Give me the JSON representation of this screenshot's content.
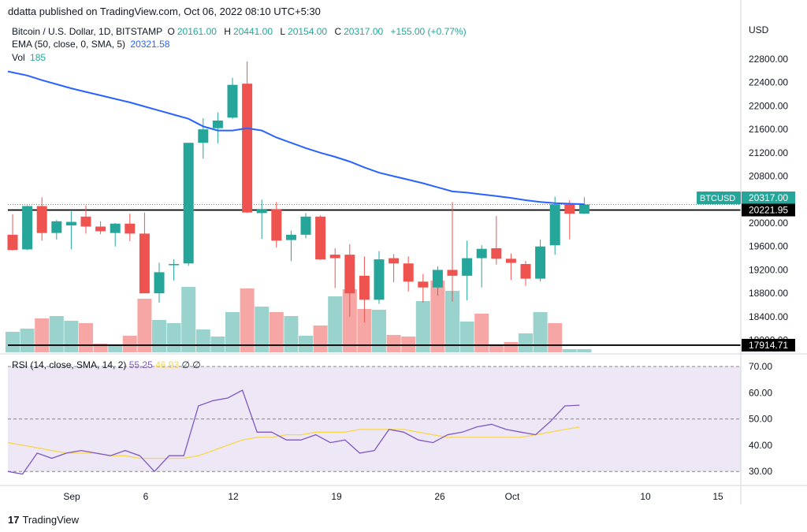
{
  "header": {
    "published": "ddatta published on TradingView.com, Oct 06, 2022 08:10 UTC+5:30"
  },
  "legend": {
    "symbol": "Bitcoin / U.S. Dollar, 1D, BITSTAMP",
    "o_label": "O",
    "o": "20161.00",
    "h_label": "H",
    "h": "20441.00",
    "l_label": "L",
    "l": "20154.00",
    "c_label": "C",
    "c": "20317.00",
    "change": "+155.00 (+0.77%)",
    "ema_label": "EMA (50, close, 0, SMA, 5)",
    "ema_value": "20321.58",
    "vol_label": "Vol",
    "vol_value": "185"
  },
  "rsi_legend": {
    "label": "RSI (14, close, SMA, 14, 2)",
    "value": "55.25",
    "ma_value": "46.93",
    "extra1": "∅",
    "extra2": "∅"
  },
  "currency": "USD",
  "footer": {
    "brand": "TradingView",
    "logo": "17"
  },
  "colors": {
    "up": "#26a69a",
    "down": "#ef5350",
    "ema": "#2962ff",
    "rsi": "#7e57c2",
    "rsi_ma": "#f9d74c",
    "rsi_band": "#ede7f6"
  },
  "chart_data": {
    "type": "candlestick",
    "price_axis_ticks": [
      "22800.00",
      "22400.00",
      "22000.00",
      "21600.00",
      "21200.00",
      "20800.00",
      "20400.00",
      "20000.00",
      "19600.00",
      "19200.00",
      "18800.00",
      "18400.00",
      "18000.00"
    ],
    "x_tick_labels": [
      "Sep",
      "6",
      "12",
      "19",
      "26",
      "Oct",
      "10",
      "15"
    ],
    "price_tag": {
      "label": "BTCUSD",
      "value": "20317.00"
    },
    "horizontal_lines": [
      {
        "value": 20221.95,
        "label": "20221.95"
      },
      {
        "value": 17914.71,
        "label": "17914.71"
      }
    ],
    "candles": [
      {
        "o": 19800,
        "h": 20150,
        "l": 19530,
        "c": 19540
      },
      {
        "o": 19550,
        "h": 20300,
        "l": 19540,
        "c": 20290
      },
      {
        "o": 20290,
        "h": 20440,
        "l": 19700,
        "c": 19830
      },
      {
        "o": 19830,
        "h": 20050,
        "l": 19720,
        "c": 20030
      },
      {
        "o": 19960,
        "h": 20200,
        "l": 19550,
        "c": 20020
      },
      {
        "o": 20110,
        "h": 20300,
        "l": 19820,
        "c": 19940
      },
      {
        "o": 19940,
        "h": 20030,
        "l": 19810,
        "c": 19860
      },
      {
        "o": 19830,
        "h": 20000,
        "l": 19600,
        "c": 19990
      },
      {
        "o": 19990,
        "h": 20160,
        "l": 19690,
        "c": 19820
      },
      {
        "o": 19820,
        "h": 20180,
        "l": 18810,
        "c": 18800
      },
      {
        "o": 18800,
        "h": 19320,
        "l": 18640,
        "c": 19160
      },
      {
        "o": 19290,
        "h": 19380,
        "l": 19020,
        "c": 19300
      },
      {
        "o": 19310,
        "h": 21370,
        "l": 19270,
        "c": 21370
      },
      {
        "o": 21370,
        "h": 21790,
        "l": 21100,
        "c": 21600
      },
      {
        "o": 21620,
        "h": 21890,
        "l": 21360,
        "c": 21750
      },
      {
        "o": 21800,
        "h": 22480,
        "l": 21780,
        "c": 22360
      },
      {
        "o": 22380,
        "h": 22760,
        "l": 20170,
        "c": 20180
      },
      {
        "o": 20170,
        "h": 20400,
        "l": 19730,
        "c": 20240
      },
      {
        "o": 20230,
        "h": 20360,
        "l": 19580,
        "c": 19700
      },
      {
        "o": 19710,
        "h": 19870,
        "l": 19350,
        "c": 19800
      },
      {
        "o": 19800,
        "h": 20170,
        "l": 19740,
        "c": 20110
      },
      {
        "o": 20110,
        "h": 20130,
        "l": 19370,
        "c": 19380
      },
      {
        "o": 19460,
        "h": 19570,
        "l": 18890,
        "c": 19400
      },
      {
        "o": 19460,
        "h": 19640,
        "l": 18400,
        "c": 18800
      },
      {
        "o": 19100,
        "h": 19430,
        "l": 18300,
        "c": 18690
      },
      {
        "o": 18690,
        "h": 19520,
        "l": 18620,
        "c": 19380
      },
      {
        "o": 19400,
        "h": 19470,
        "l": 18990,
        "c": 19310
      },
      {
        "o": 19310,
        "h": 19430,
        "l": 18830,
        "c": 19000
      },
      {
        "o": 19000,
        "h": 19130,
        "l": 18640,
        "c": 18900
      },
      {
        "o": 18900,
        "h": 19260,
        "l": 18760,
        "c": 19200
      },
      {
        "o": 19200,
        "h": 20360,
        "l": 18660,
        "c": 19100
      },
      {
        "o": 19100,
        "h": 19700,
        "l": 18680,
        "c": 19400
      },
      {
        "o": 19400,
        "h": 19620,
        "l": 18900,
        "c": 19560
      },
      {
        "o": 19570,
        "h": 20120,
        "l": 19290,
        "c": 19390
      },
      {
        "o": 19390,
        "h": 19480,
        "l": 19030,
        "c": 19320
      },
      {
        "o": 19300,
        "h": 19350,
        "l": 18930,
        "c": 19050
      },
      {
        "o": 19050,
        "h": 19720,
        "l": 19000,
        "c": 19600
      },
      {
        "o": 19620,
        "h": 20450,
        "l": 19460,
        "c": 20320
      },
      {
        "o": 20320,
        "h": 20390,
        "l": 19720,
        "c": 20160
      },
      {
        "o": 20161,
        "h": 20441,
        "l": 20154,
        "c": 20317
      }
    ],
    "ema": [
      22590,
      22520,
      22440,
      22370,
      22300,
      22240,
      22180,
      22120,
      22060,
      21990,
      21920,
      21850,
      21780,
      21650,
      21580,
      21580,
      21620,
      21580,
      21460,
      21370,
      21280,
      21200,
      21130,
      21050,
      20950,
      20860,
      20800,
      20740,
      20680,
      20610,
      20540,
      20520,
      20490,
      20460,
      20430,
      20390,
      20360,
      20340,
      20330,
      20322
    ],
    "volume": [
      0.26,
      0.3,
      0.43,
      0.46,
      0.4,
      0.37,
      0.11,
      0.1,
      0.21,
      0.68,
      0.41,
      0.37,
      0.83,
      0.29,
      0.2,
      0.51,
      0.81,
      0.58,
      0.51,
      0.46,
      0.21,
      0.34,
      0.71,
      0.8,
      0.55,
      0.54,
      0.22,
      0.2,
      0.65,
      0.91,
      0.78,
      0.39,
      0.49,
      0.1,
      0.13,
      0.24,
      0.51,
      0.37,
      0.04,
      0.04
    ],
    "volume_color": [
      "up",
      "up",
      "down",
      "up",
      "up",
      "down",
      "down",
      "up",
      "down",
      "down",
      "up",
      "up",
      "up",
      "up",
      "up",
      "up",
      "down",
      "up",
      "down",
      "up",
      "up",
      "down",
      "up",
      "down",
      "down",
      "up",
      "down",
      "down",
      "up",
      "down",
      "up",
      "up",
      "down",
      "down",
      "down",
      "up",
      "up",
      "down",
      "up",
      "up"
    ],
    "rsi_axis_ticks": [
      "70.00",
      "60.00",
      "50.00",
      "40.00",
      "30.00"
    ],
    "rsi_bands": [
      70,
      50,
      30
    ],
    "rsi": [
      30,
      29,
      37,
      35,
      37,
      38,
      37,
      36,
      38,
      36,
      30,
      36,
      36,
      55,
      57,
      58,
      61,
      45,
      45,
      42,
      42,
      44,
      41,
      42,
      37,
      38,
      46,
      45,
      42,
      41,
      44,
      45,
      47,
      48,
      46,
      45,
      44,
      49,
      55,
      55.25
    ],
    "rsi_ma": [
      41,
      40,
      39,
      38,
      37,
      37,
      37,
      36,
      36,
      35,
      35,
      35,
      35,
      36,
      38,
      40,
      42,
      43,
      43,
      44,
      44,
      45,
      45,
      45,
      46,
      46,
      46,
      46,
      45,
      44,
      43,
      43,
      43,
      43,
      43,
      43,
      44,
      45,
      46,
      46.93
    ]
  }
}
